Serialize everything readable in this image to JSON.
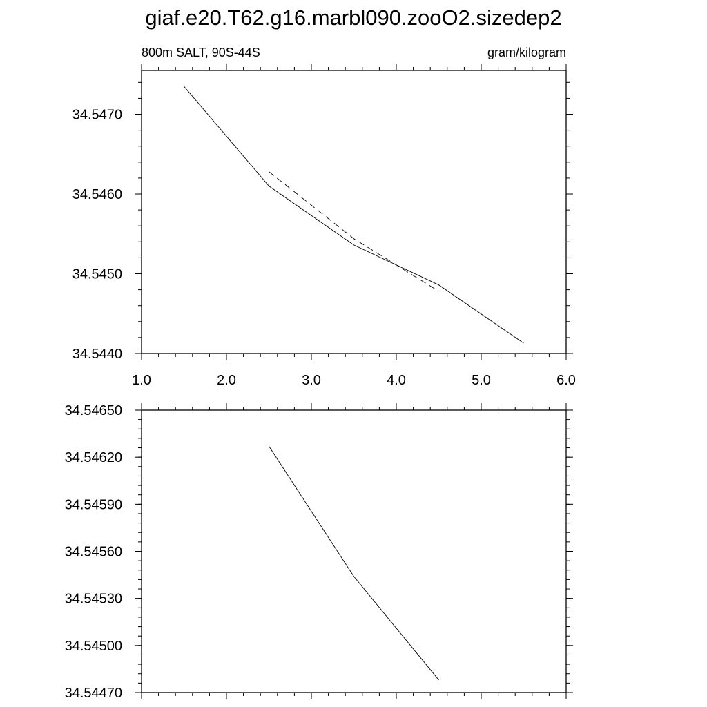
{
  "title": "giaf.e20.T62.g16.marbl090.zooO2.sizedep2",
  "chart_data": [
    {
      "type": "line",
      "left_label": "800m SALT, 90S-44S",
      "right_label": "gram/kilogram",
      "xlim": [
        1.0,
        6.0
      ],
      "ylim": [
        34.544,
        34.54755
      ],
      "x_ticks": [
        "1.0",
        "2.0",
        "3.0",
        "4.0",
        "5.0",
        "6.0"
      ],
      "y_ticks": [
        "34.5440",
        "34.5450",
        "34.5460",
        "34.5470"
      ],
      "grid": false,
      "series": [
        {
          "style": "solid",
          "color": "#000000",
          "x": [
            1.5,
            2.5,
            3.5,
            4.5,
            5.5
          ],
          "y": [
            34.54735,
            34.5461,
            34.54536,
            34.54486,
            34.54413
          ]
        },
        {
          "style": "dashed",
          "color": "#000000",
          "x": [
            2.5,
            3.5,
            4.5
          ],
          "y": [
            34.54628,
            34.54544,
            34.54478
          ]
        }
      ]
    },
    {
      "type": "line",
      "xlim": [
        1.0,
        6.0
      ],
      "ylim": [
        34.5447,
        34.5465
      ],
      "x_ticks": [
        "",
        "",
        "",
        "",
        "",
        ""
      ],
      "y_ticks": [
        "34.54470",
        "34.54500",
        "34.54530",
        "34.54560",
        "34.54590",
        "34.54620",
        "34.54650"
      ],
      "grid": false,
      "series": [
        {
          "style": "solid",
          "color": "#000000",
          "x": [
            2.5,
            3.5,
            4.5
          ],
          "y": [
            34.54627,
            34.54544,
            34.54478
          ]
        }
      ]
    }
  ]
}
